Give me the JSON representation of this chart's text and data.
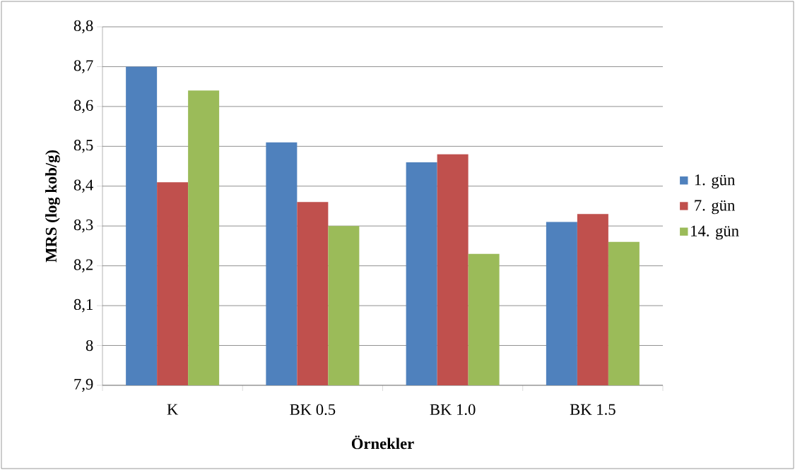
{
  "chart_data": {
    "type": "bar",
    "xlabel": "Örnekler",
    "ylabel": "MRS (log kob/g)",
    "categories": [
      "K",
      "BK 0.5",
      "BK 1.0",
      "BK 1.5"
    ],
    "series": [
      {
        "name": "1. gün",
        "color": "#4f81bd",
        "values": [
          8.7,
          8.51,
          8.46,
          8.31
        ]
      },
      {
        "name": "7. gün",
        "color": "#c0504d",
        "values": [
          8.41,
          8.36,
          8.48,
          8.33
        ]
      },
      {
        "name": "14. gün",
        "color": "#9bbb59",
        "values": [
          8.64,
          8.3,
          8.23,
          8.26
        ]
      }
    ],
    "ylim": [
      7.9,
      8.8
    ],
    "yticks": [
      {
        "value": 7.9,
        "label": "7,9"
      },
      8,
      {
        "value": 8.1,
        "label": "8,1"
      },
      {
        "value": 8.2,
        "label": "8,2"
      },
      {
        "value": 8.3,
        "label": "8,3"
      },
      {
        "value": 8.4,
        "label": "8,4"
      },
      {
        "value": 8.5,
        "label": "8,5"
      },
      {
        "value": 8.6,
        "label": "8,6"
      },
      {
        "value": 8.7,
        "label": "8,7"
      },
      {
        "value": 8.8,
        "label": "8,8"
      }
    ],
    "grid": "y",
    "legend": "right"
  }
}
